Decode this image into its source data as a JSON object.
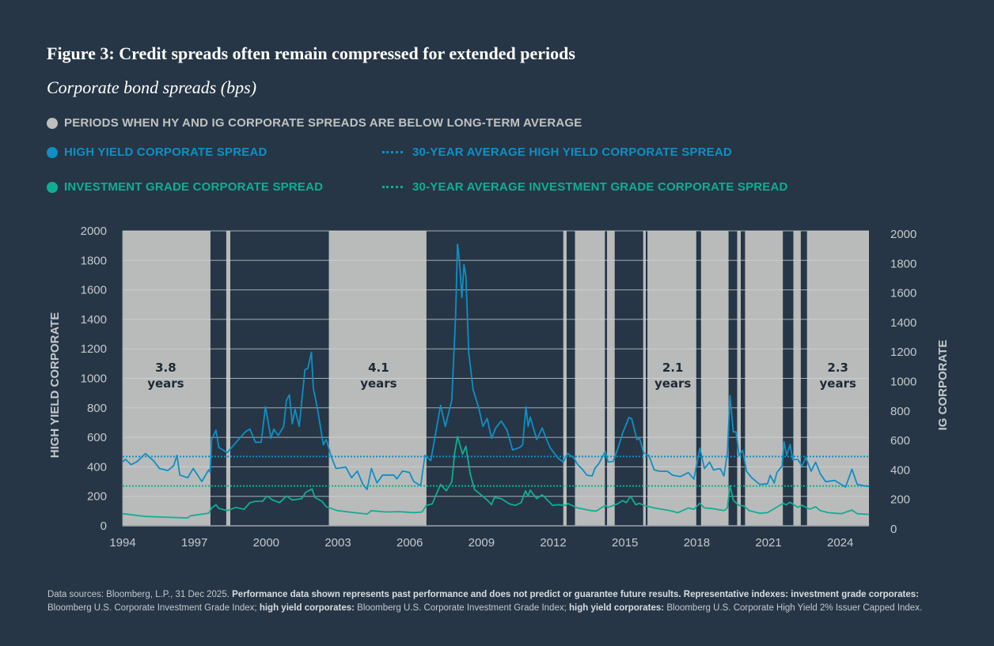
{
  "header": {
    "title": "Figure 3: Credit spreads often remain compressed for extended periods",
    "subtitle": "Corporate bond spreads (bps)"
  },
  "legend": {
    "shaded": "PERIODS WHEN HY AND IG CORPORATE SPREADS ARE BELOW LONG-TERM AVERAGE",
    "hy": "HIGH YIELD CORPORATE SPREAD",
    "hy_avg": "30-YEAR AVERAGE HIGH YIELD CORPORATE SPREAD",
    "ig": "INVESTMENT GRADE CORPORATE SPREAD",
    "ig_avg": "30-YEAR AVERAGE INVESTMENT GRADE CORPORATE SPREAD"
  },
  "colors": {
    "background": "#263646",
    "hy": "#0f8fc4",
    "ig": "#10ad95",
    "shade": "#b9bbba",
    "grid": "#d0d4d8",
    "text": "#c5c9cc"
  },
  "footer": {
    "p1": "Data sources: Bloomberg, L.P., 31 Dec 2025. ",
    "b1": "Performance data shown represents past performance and does not predict or guarantee future results. Representative indexes: investment grade corporates:",
    "p2": " Bloomberg U.S. Corporate Investment Grade Index; ",
    "b2": "high yield corporates:",
    "p3": " Bloomberg U.S. Corporate Investment Grade Index; ",
    "b3": "high yield corporates:",
    "p4": " Bloomberg U.S. Corporate High Yield 2% Issuer Capped Index."
  },
  "chart_data": {
    "type": "line",
    "title": "Figure 3: Credit spreads often remain compressed for extended periods",
    "subtitle": "Corporate bond spreads (bps)",
    "ylabel_left": "HIGH YIELD CORPORATE",
    "ylabel_right": "IG CORPORATE",
    "xlim": [
      1994,
      2025.2
    ],
    "ylim": [
      0,
      2000
    ],
    "x_ticks": [
      "1994",
      "1997",
      "2000",
      "2003",
      "2006",
      "2009",
      "2012",
      "2015",
      "2018",
      "2021",
      "2024"
    ],
    "y_ticks": [
      "0",
      "200",
      "400",
      "600",
      "800",
      "1000",
      "1200",
      "1400",
      "1600",
      "1800",
      "2000"
    ],
    "grid": true,
    "legend_position": "top",
    "averages": {
      "hy": 470,
      "ig": 270
    },
    "shaded_periods": [
      [
        1994.0,
        1997.67
      ],
      [
        1998.33,
        1998.5
      ],
      [
        2002.62,
        2006.7
      ],
      [
        2012.42,
        2012.56
      ],
      [
        2012.91,
        2014.16
      ],
      [
        2014.25,
        2014.57
      ],
      [
        2015.76,
        2015.87
      ],
      [
        2015.94,
        2017.98
      ],
      [
        2018.18,
        2019.33
      ],
      [
        2019.69,
        2019.84
      ],
      [
        2020.02,
        2021.6
      ],
      [
        2022.04,
        2022.35
      ],
      [
        2022.61,
        2025.2
      ]
    ],
    "annotations": [
      {
        "x": 1995.8,
        "value": "3.8",
        "unit": "years"
      },
      {
        "x": 2004.7,
        "value": "4.1",
        "unit": "years"
      },
      {
        "x": 2017.0,
        "value": "2.1",
        "unit": "years"
      },
      {
        "x": 2023.9,
        "value": "2.3",
        "unit": "years"
      }
    ],
    "series": [
      {
        "key": "hy",
        "points": [
          [
            1994.0,
            433
          ],
          [
            1994.12,
            451
          ],
          [
            1994.35,
            415
          ],
          [
            1994.59,
            433
          ],
          [
            1994.95,
            490
          ],
          [
            1995.3,
            439
          ],
          [
            1995.54,
            389
          ],
          [
            1995.89,
            375
          ],
          [
            1996.13,
            407
          ],
          [
            1996.27,
            478
          ],
          [
            1996.39,
            344
          ],
          [
            1996.72,
            326
          ],
          [
            1996.95,
            389
          ],
          [
            1997.31,
            300
          ],
          [
            1997.6,
            380
          ],
          [
            1997.66,
            362
          ],
          [
            1997.72,
            585
          ],
          [
            1997.9,
            648
          ],
          [
            1998.02,
            532
          ],
          [
            1998.37,
            496
          ],
          [
            1998.84,
            585
          ],
          [
            1999.14,
            639
          ],
          [
            1999.32,
            656
          ],
          [
            1999.55,
            567
          ],
          [
            1999.79,
            567
          ],
          [
            1999.97,
            808
          ],
          [
            2000.2,
            594
          ],
          [
            2000.32,
            656
          ],
          [
            2000.5,
            612
          ],
          [
            2000.73,
            674
          ],
          [
            2000.85,
            853
          ],
          [
            2000.97,
            888
          ],
          [
            2001.09,
            692
          ],
          [
            2001.21,
            790
          ],
          [
            2001.38,
            674
          ],
          [
            2001.62,
            1058
          ],
          [
            2001.74,
            1067
          ],
          [
            2001.89,
            1177
          ],
          [
            2001.97,
            933
          ],
          [
            2002.15,
            790
          ],
          [
            2002.39,
            549
          ],
          [
            2002.51,
            585
          ],
          [
            2002.74,
            460
          ],
          [
            2002.92,
            389
          ],
          [
            2003.33,
            398
          ],
          [
            2003.57,
            326
          ],
          [
            2003.81,
            371
          ],
          [
            2004.04,
            282
          ],
          [
            2004.22,
            246
          ],
          [
            2004.4,
            389
          ],
          [
            2004.63,
            291
          ],
          [
            2004.87,
            344
          ],
          [
            2005.34,
            344
          ],
          [
            2005.46,
            318
          ],
          [
            2005.7,
            371
          ],
          [
            2005.99,
            362
          ],
          [
            2006.17,
            300
          ],
          [
            2006.46,
            273
          ],
          [
            2006.64,
            478
          ],
          [
            2006.88,
            442
          ],
          [
            2007.06,
            603
          ],
          [
            2007.29,
            817
          ],
          [
            2007.49,
            674
          ],
          [
            2007.76,
            853
          ],
          [
            2007.92,
            1424
          ],
          [
            2008.0,
            1909
          ],
          [
            2008.08,
            1798
          ],
          [
            2008.18,
            1548
          ],
          [
            2008.27,
            1771
          ],
          [
            2008.35,
            1691
          ],
          [
            2008.47,
            1174
          ],
          [
            2008.65,
            924
          ],
          [
            2008.89,
            799
          ],
          [
            2009.06,
            674
          ],
          [
            2009.24,
            728
          ],
          [
            2009.42,
            594
          ],
          [
            2009.6,
            665
          ],
          [
            2009.83,
            710
          ],
          [
            2010.07,
            648
          ],
          [
            2010.3,
            514
          ],
          [
            2010.6,
            531
          ],
          [
            2010.72,
            549
          ],
          [
            2010.86,
            808
          ],
          [
            2010.95,
            674
          ],
          [
            2011.04,
            737
          ],
          [
            2011.31,
            585
          ],
          [
            2011.54,
            664
          ],
          [
            2011.7,
            594
          ],
          [
            2011.87,
            530
          ],
          [
            2012.2,
            459
          ],
          [
            2012.42,
            432
          ],
          [
            2012.6,
            491
          ],
          [
            2012.86,
            460
          ],
          [
            2013.02,
            415
          ],
          [
            2013.19,
            388
          ],
          [
            2013.41,
            343
          ],
          [
            2013.63,
            338
          ],
          [
            2013.74,
            388
          ],
          [
            2013.91,
            423
          ],
          [
            2014.18,
            504
          ],
          [
            2014.29,
            432
          ],
          [
            2014.51,
            437
          ],
          [
            2014.73,
            539
          ],
          [
            2014.9,
            628
          ],
          [
            2015.17,
            735
          ],
          [
            2015.28,
            726
          ],
          [
            2015.5,
            584
          ],
          [
            2015.61,
            593
          ],
          [
            2015.78,
            495
          ],
          [
            2016.0,
            477
          ],
          [
            2016.22,
            379
          ],
          [
            2016.44,
            370
          ],
          [
            2016.77,
            370
          ],
          [
            2016.99,
            343
          ],
          [
            2017.32,
            334
          ],
          [
            2017.65,
            361
          ],
          [
            2017.88,
            317
          ],
          [
            2018.13,
            527
          ],
          [
            2018.32,
            388
          ],
          [
            2018.54,
            432
          ],
          [
            2018.7,
            379
          ],
          [
            2018.98,
            388
          ],
          [
            2019.14,
            338
          ],
          [
            2019.28,
            494
          ],
          [
            2019.39,
            883
          ],
          [
            2019.53,
            637
          ],
          [
            2019.64,
            637
          ],
          [
            2019.77,
            477
          ],
          [
            2019.92,
            512
          ],
          [
            2020.08,
            370
          ],
          [
            2020.3,
            326
          ],
          [
            2020.63,
            281
          ],
          [
            2020.96,
            285
          ],
          [
            2021.07,
            343
          ],
          [
            2021.24,
            290
          ],
          [
            2021.35,
            361
          ],
          [
            2021.57,
            406
          ],
          [
            2021.65,
            570
          ],
          [
            2021.76,
            477
          ],
          [
            2021.9,
            552
          ],
          [
            2022.01,
            450
          ],
          [
            2022.23,
            450
          ],
          [
            2022.4,
            406
          ],
          [
            2022.56,
            463
          ],
          [
            2022.78,
            370
          ],
          [
            2022.97,
            432
          ],
          [
            2023.17,
            352
          ],
          [
            2023.39,
            299
          ],
          [
            2023.77,
            308
          ],
          [
            2024.22,
            263
          ],
          [
            2024.49,
            384
          ],
          [
            2024.71,
            281
          ],
          [
            2024.99,
            272
          ],
          [
            2025.21,
            267
          ]
        ]
      },
      {
        "key": "ig",
        "points": [
          [
            1994.0,
            82
          ],
          [
            1994.95,
            64
          ],
          [
            1996.72,
            53
          ],
          [
            1996.84,
            68
          ],
          [
            1997.6,
            86
          ],
          [
            1997.72,
            121
          ],
          [
            1997.9,
            143
          ],
          [
            1998.02,
            118
          ],
          [
            1998.37,
            103
          ],
          [
            1998.73,
            125
          ],
          [
            1999.08,
            112
          ],
          [
            1999.32,
            157
          ],
          [
            1999.55,
            166
          ],
          [
            1999.85,
            166
          ],
          [
            2000.03,
            202
          ],
          [
            2000.27,
            175
          ],
          [
            2000.56,
            157
          ],
          [
            2000.85,
            202
          ],
          [
            2001.09,
            175
          ],
          [
            2001.48,
            184
          ],
          [
            2001.66,
            228
          ],
          [
            2001.92,
            250
          ],
          [
            2002.03,
            193
          ],
          [
            2002.33,
            166
          ],
          [
            2002.51,
            130
          ],
          [
            2002.98,
            103
          ],
          [
            2003.45,
            94
          ],
          [
            2004.22,
            80
          ],
          [
            2004.4,
            103
          ],
          [
            2004.99,
            94
          ],
          [
            2005.58,
            96
          ],
          [
            2006.17,
            89
          ],
          [
            2006.52,
            94
          ],
          [
            2006.7,
            139
          ],
          [
            2006.94,
            148
          ],
          [
            2007.29,
            281
          ],
          [
            2007.53,
            237
          ],
          [
            2007.76,
            299
          ],
          [
            2007.88,
            495
          ],
          [
            2008.0,
            605
          ],
          [
            2008.21,
            486
          ],
          [
            2008.35,
            539
          ],
          [
            2008.53,
            352
          ],
          [
            2008.71,
            246
          ],
          [
            2009.04,
            202
          ],
          [
            2009.24,
            175
          ],
          [
            2009.42,
            143
          ],
          [
            2009.54,
            193
          ],
          [
            2009.83,
            184
          ],
          [
            2010.18,
            148
          ],
          [
            2010.42,
            139
          ],
          [
            2010.66,
            157
          ],
          [
            2010.84,
            237
          ],
          [
            2010.95,
            201
          ],
          [
            2011.04,
            242
          ],
          [
            2011.31,
            184
          ],
          [
            2011.54,
            210
          ],
          [
            2011.7,
            184
          ],
          [
            2011.98,
            139
          ],
          [
            2012.2,
            143
          ],
          [
            2012.53,
            139
          ],
          [
            2012.6,
            152
          ],
          [
            2013.02,
            121
          ],
          [
            2013.58,
            103
          ],
          [
            2013.8,
            100
          ],
          [
            2014.18,
            139
          ],
          [
            2014.29,
            125
          ],
          [
            2014.68,
            148
          ],
          [
            2014.9,
            171
          ],
          [
            2015.06,
            157
          ],
          [
            2015.23,
            201
          ],
          [
            2015.45,
            143
          ],
          [
            2015.61,
            153
          ],
          [
            2015.78,
            139
          ],
          [
            2016.22,
            121
          ],
          [
            2016.88,
            103
          ],
          [
            2017.21,
            89
          ],
          [
            2017.65,
            121
          ],
          [
            2017.88,
            112
          ],
          [
            2018.13,
            153
          ],
          [
            2018.32,
            121
          ],
          [
            2018.65,
            117
          ],
          [
            2019.14,
            103
          ],
          [
            2019.28,
            121
          ],
          [
            2019.39,
            272
          ],
          [
            2019.53,
            174
          ],
          [
            2019.75,
            139
          ],
          [
            2019.97,
            135
          ],
          [
            2020.19,
            103
          ],
          [
            2020.63,
            85
          ],
          [
            2020.96,
            89
          ],
          [
            2021.29,
            121
          ],
          [
            2021.62,
            153
          ],
          [
            2021.73,
            142
          ],
          [
            2021.9,
            160
          ],
          [
            2022.23,
            125
          ],
          [
            2022.4,
            139
          ],
          [
            2022.73,
            112
          ],
          [
            2022.97,
            130
          ],
          [
            2023.17,
            103
          ],
          [
            2023.5,
            89
          ],
          [
            2024.05,
            82
          ],
          [
            2024.49,
            107
          ],
          [
            2024.71,
            82
          ],
          [
            2025.21,
            77
          ]
        ]
      }
    ]
  }
}
